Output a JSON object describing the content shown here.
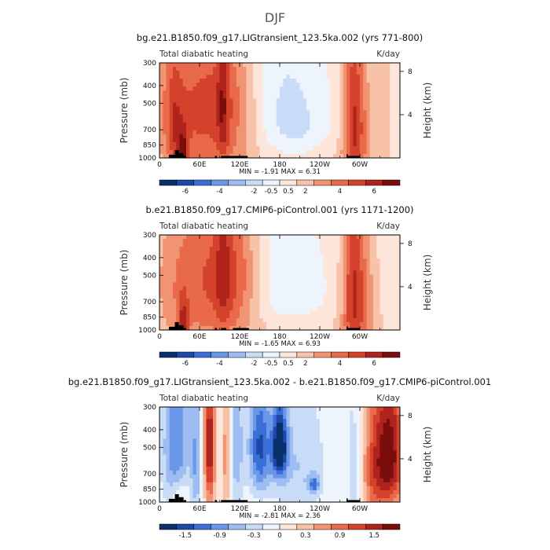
{
  "figure": {
    "season": "DJF"
  },
  "palettes": {
    "full": [
      "#08306b",
      "#1e48a8",
      "#3a6fd8",
      "#6a97e8",
      "#9cbcf2",
      "#c9dcf7",
      "#eef4fb",
      "#fde6d9",
      "#f7c2a8",
      "#f09473",
      "#e86a4a",
      "#d4422c",
      "#b0231c",
      "#7a0c0c"
    ],
    "diff": [
      "#08306b",
      "#1e48a8",
      "#3a6fd8",
      "#6a97e8",
      "#9cbcf2",
      "#c9dcf7",
      "#eef4fb",
      "#fde6d9",
      "#f7c2a8",
      "#f09473",
      "#e86a4a",
      "#d4422c",
      "#b0231c",
      "#7a0c0c"
    ]
  },
  "chart_data": [
    {
      "type": "heatmap",
      "title": "bg.e21.B1850.f09_g17.LIGtransient_123.5ka.002 (yrs 771-800)",
      "left_label": "Total diabatic heating",
      "right_label": "K/day",
      "ylabel": "Pressure  (mb)",
      "ylabel_right": "Height  (km)",
      "x_ticks": [
        "0",
        "60E",
        "120E",
        "180",
        "120W",
        "60W"
      ],
      "y_ticks": [
        "300",
        "400",
        "500",
        "700",
        "850",
        "1000"
      ],
      "y_right_ticks": [
        "8",
        "4"
      ],
      "min_max": "MIN =   -1.91   MAX =    6.31",
      "colorbar_labels": [
        "-6",
        "-4",
        "-2",
        "-0.5",
        "0.5",
        "2",
        "4",
        "6"
      ],
      "palette": "full",
      "cmin": -7,
      "cmax": 7,
      "diff": false,
      "fields": [
        {
          "lon": 50,
          "lev": 550,
          "sx": 50,
          "sy": 400,
          "amp": 3.6
        },
        {
          "lon": 110,
          "lev": 520,
          "sx": 30,
          "sy": 350,
          "amp": 2.2
        },
        {
          "lon": 35,
          "lev": 950,
          "sx": 6,
          "sy": 200,
          "amp": 3.5
        },
        {
          "lon": 22,
          "lev": 700,
          "sx": 8,
          "sy": 350,
          "amp": 1.8
        },
        {
          "lon": 95,
          "lev": 500,
          "sx": 6,
          "sy": 400,
          "amp": 2.0
        },
        {
          "lon": 165,
          "lev": 500,
          "sx": 45,
          "sy": 400,
          "amp": -1.3
        },
        {
          "lon": 210,
          "lev": 700,
          "sx": 30,
          "sy": 300,
          "amp": -1.0
        },
        {
          "lon": 290,
          "lev": 600,
          "sx": 12,
          "sy": 500,
          "amp": 3.8
        },
        {
          "lon": 302,
          "lev": 700,
          "sx": 15,
          "sy": 400,
          "amp": 1.4
        },
        {
          "lon": 335,
          "lev": 500,
          "sx": 15,
          "sy": 400,
          "amp": 0.8
        },
        {
          "lon": 180,
          "lev": 960,
          "sx": 120,
          "sy": 120,
          "amp": 0.8
        }
      ],
      "masks": [
        [
          14,
          23,
          960
        ],
        [
          23,
          29,
          905
        ],
        [
          29,
          36,
          940
        ],
        [
          36,
          40,
          975
        ],
        [
          83,
          86,
          975
        ],
        [
          92,
          132,
          975
        ],
        [
          280,
          282,
          955
        ],
        [
          282,
          300,
          975
        ]
      ]
    },
    {
      "type": "heatmap",
      "title": "b.e21.B1850.f09_g17.CMIP6-piControl.001 (yrs 1171-1200)",
      "left_label": "Total diabatic heating",
      "right_label": "K/day",
      "ylabel": "Pressure  (mb)",
      "ylabel_right": "Height  (km)",
      "x_ticks": [
        "0",
        "60E",
        "120E",
        "180",
        "120W",
        "60W"
      ],
      "y_ticks": [
        "300",
        "400",
        "500",
        "700",
        "850",
        "1000"
      ],
      "y_right_ticks": [
        "8",
        "4"
      ],
      "min_max": "MIN =   -1.65   MAX =    6.93",
      "colorbar_labels": [
        "-6",
        "-4",
        "-2",
        "-0.5",
        "0.5",
        "2",
        "4",
        "6"
      ],
      "palette": "full",
      "cmin": -7,
      "cmax": 7,
      "diff": false,
      "fields": [
        {
          "lon": 45,
          "lev": 550,
          "sx": 40,
          "sy": 400,
          "amp": 3.0
        },
        {
          "lon": 110,
          "lev": 500,
          "sx": 30,
          "sy": 350,
          "amp": 3.2
        },
        {
          "lon": 95,
          "lev": 500,
          "sx": 8,
          "sy": 400,
          "amp": 1.5
        },
        {
          "lon": 35,
          "lev": 950,
          "sx": 6,
          "sy": 200,
          "amp": 3.2
        },
        {
          "lon": 165,
          "lev": 500,
          "sx": 25,
          "sy": 400,
          "amp": -0.9
        },
        {
          "lon": 215,
          "lev": 650,
          "sx": 30,
          "sy": 350,
          "amp": -0.7
        },
        {
          "lon": 290,
          "lev": 600,
          "sx": 12,
          "sy": 500,
          "amp": 3.8
        },
        {
          "lon": 310,
          "lev": 650,
          "sx": 20,
          "sy": 400,
          "amp": 1.8
        },
        {
          "lon": 340,
          "lev": 550,
          "sx": 15,
          "sy": 400,
          "amp": -0.6
        },
        {
          "lon": 180,
          "lev": 960,
          "sx": 120,
          "sy": 120,
          "amp": 0.8
        }
      ],
      "masks": [
        [
          14,
          23,
          960
        ],
        [
          23,
          29,
          905
        ],
        [
          29,
          36,
          940
        ],
        [
          36,
          40,
          975
        ],
        [
          83,
          86,
          975
        ],
        [
          92,
          100,
          975
        ],
        [
          110,
          134,
          975
        ],
        [
          280,
          282,
          955
        ],
        [
          282,
          300,
          975
        ]
      ]
    },
    {
      "type": "heatmap",
      "title": "bg.e21.B1850.f09_g17.LIGtransient_123.5ka.002 - b.e21.B1850.f09_g17.CMIP6-piControl.001",
      "left_label": "Total diabatic heating",
      "right_label": "K/day",
      "ylabel": "Pressure  (mb)",
      "ylabel_right": "Height  (km)",
      "x_ticks": [
        "0",
        "60E",
        "120E",
        "180",
        "120W",
        "60W"
      ],
      "y_ticks": [
        "300",
        "400",
        "500",
        "700",
        "850",
        "1000"
      ],
      "y_right_ticks": [
        "8",
        "4"
      ],
      "min_max": "MIN =   -2.81   MAX =    2.36",
      "colorbar_labels": [
        "-1.5",
        "-0.9",
        "-0.3",
        "0",
        "0.3",
        "0.9",
        "1.5"
      ],
      "palette": "diff",
      "cmin": -2.1,
      "cmax": 2.1,
      "diff": true,
      "fields": [
        {
          "lon": 25,
          "lev": 500,
          "sx": 15,
          "sy": 400,
          "amp": -1.2
        },
        {
          "lon": 75,
          "lev": 500,
          "sx": 6,
          "sy": 350,
          "amp": 1.8
        },
        {
          "lon": 55,
          "lev": 600,
          "sx": 6,
          "sy": 400,
          "amp": -0.8
        },
        {
          "lon": 100,
          "lev": 550,
          "sx": 5,
          "sy": 400,
          "amp": 0.8
        },
        {
          "lon": 115,
          "lev": 500,
          "sx": 8,
          "sy": 400,
          "amp": -0.8
        },
        {
          "lon": 150,
          "lev": 500,
          "sx": 12,
          "sy": 250,
          "amp": -1.5
        },
        {
          "lon": 180,
          "lev": 500,
          "sx": 8,
          "sy": 150,
          "amp": -2.2
        },
        {
          "lon": 210,
          "lev": 650,
          "sx": 30,
          "sy": 400,
          "amp": -0.6
        },
        {
          "lon": 232,
          "lev": 800,
          "sx": 6,
          "sy": 60,
          "amp": -1.0
        },
        {
          "lon": 345,
          "lev": 550,
          "sx": 16,
          "sy": 350,
          "amp": 2.0
        },
        {
          "lon": 320,
          "lev": 700,
          "sx": 12,
          "sy": 400,
          "amp": 0.9
        },
        {
          "lon": 290,
          "lev": 750,
          "sx": 6,
          "sy": 400,
          "amp": -0.6
        },
        {
          "lon": 30,
          "lev": 900,
          "sx": 10,
          "sy": 150,
          "amp": 0.5
        }
      ],
      "masks": [
        [
          14,
          23,
          960
        ],
        [
          23,
          29,
          905
        ],
        [
          29,
          36,
          940
        ],
        [
          36,
          40,
          975
        ],
        [
          83,
          86,
          975
        ],
        [
          92,
          132,
          975
        ],
        [
          280,
          282,
          955
        ],
        [
          282,
          300,
          975
        ]
      ]
    }
  ]
}
